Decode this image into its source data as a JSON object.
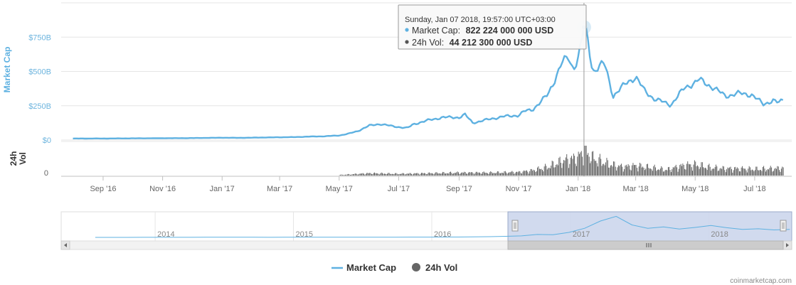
{
  "chart_data": {
    "type": "line",
    "x_tick_labels": [
      "Sep '16",
      "Nov '16",
      "Jan '17",
      "Mar '17",
      "May '17",
      "Jul '17",
      "Sep '17",
      "Nov '17",
      "Jan '18",
      "Mar '18",
      "May '18",
      "Jul '18"
    ],
    "y_axis": {
      "title": "Market Cap",
      "tick_labels": [
        "$0",
        "$250B",
        "$500B",
        "$750B"
      ],
      "ylim": [
        0,
        1000
      ]
    },
    "volume_axis": {
      "title": "24h Vol",
      "tick_labels": [
        "0"
      ]
    },
    "series": [
      {
        "name": "Market Cap",
        "color": "#5eb1e1",
        "unit": "billion USD",
        "x": [
          "2016-08-01",
          "2016-09-01",
          "2016-10-01",
          "2016-11-01",
          "2016-12-01",
          "2017-01-01",
          "2017-01-15",
          "2017-02-01",
          "2017-03-01",
          "2017-03-15",
          "2017-04-01",
          "2017-04-15",
          "2017-05-01",
          "2017-05-10",
          "2017-05-20",
          "2017-06-01",
          "2017-06-12",
          "2017-06-25",
          "2017-07-10",
          "2017-07-16",
          "2017-08-01",
          "2017-08-15",
          "2017-09-01",
          "2017-09-07",
          "2017-09-15",
          "2017-10-01",
          "2017-10-15",
          "2017-11-01",
          "2017-11-07",
          "2017-11-15",
          "2017-12-01",
          "2017-12-08",
          "2017-12-15",
          "2017-12-22",
          "2017-12-27",
          "2018-01-01",
          "2018-01-04",
          "2018-01-07",
          "2018-01-10",
          "2018-01-16",
          "2018-01-20",
          "2018-01-28",
          "2018-02-06",
          "2018-02-20",
          "2018-03-01",
          "2018-03-10",
          "2018-03-20",
          "2018-04-01",
          "2018-04-06",
          "2018-04-20",
          "2018-05-01",
          "2018-05-05",
          "2018-05-20",
          "2018-06-01",
          "2018-06-15",
          "2018-06-28",
          "2018-07-10",
          "2018-07-20",
          "2018-07-25",
          "2018-07-30"
        ],
        "values": [
          11,
          11,
          12,
          13,
          14,
          17,
          16,
          17,
          20,
          21,
          25,
          27,
          33,
          45,
          65,
          105,
          117,
          100,
          87,
          115,
          145,
          165,
          165,
          185,
          125,
          150,
          170,
          180,
          210,
          220,
          330,
          440,
          560,
          600,
          520,
          600,
          700,
          822,
          770,
          500,
          520,
          560,
          320,
          420,
          460,
          360,
          300,
          270,
          255,
          380,
          420,
          440,
          380,
          320,
          340,
          330,
          260,
          290,
          270,
          290
        ]
      },
      {
        "name": "24h Vol",
        "color": "#666666",
        "unit": "billion USD",
        "x": [
          "2017-05-01",
          "2017-06-01",
          "2017-07-01",
          "2017-08-01",
          "2017-09-01",
          "2017-10-01",
          "2017-11-01",
          "2017-11-15",
          "2017-12-01",
          "2017-12-15",
          "2018-01-01",
          "2018-01-07",
          "2018-01-16",
          "2018-02-01",
          "2018-02-15",
          "2018-03-01",
          "2018-03-15",
          "2018-04-01",
          "2018-04-20",
          "2018-05-01",
          "2018-05-15",
          "2018-06-01",
          "2018-06-15",
          "2018-07-01",
          "2018-07-20",
          "2018-07-30"
        ],
        "values": [
          1,
          4,
          3,
          4,
          5,
          5,
          6,
          9,
          15,
          25,
          32,
          44,
          30,
          20,
          15,
          17,
          14,
          10,
          18,
          19,
          14,
          12,
          12,
          11,
          12,
          13
        ]
      }
    ],
    "grid": true,
    "legend_placement": "bottom-center",
    "navigator": {
      "year_labels": [
        "2014",
        "2015",
        "2016",
        "2017",
        "2018"
      ],
      "values": [
        1,
        1,
        1,
        2,
        2,
        2,
        3,
        5,
        7,
        6,
        4,
        3,
        4,
        4,
        5,
        5,
        6,
        6,
        8,
        7,
        9,
        10,
        11,
        14,
        17,
        25,
        38,
        55,
        105,
        95,
        180,
        330,
        590,
        760,
        450,
        330,
        380,
        300,
        360,
        430,
        350,
        290,
        310,
        270,
        290
      ]
    },
    "tooltip": {
      "date": "Sunday, Jan 07 2018, 19:57:00 UTC+03:00",
      "market_cap_label": "Market Cap:",
      "market_cap_value": "822 224 000 000 USD",
      "volume_label": "24h Vol:",
      "volume_value": "44 212 300 000 USD"
    },
    "credit": "coinmarketcap.com"
  }
}
